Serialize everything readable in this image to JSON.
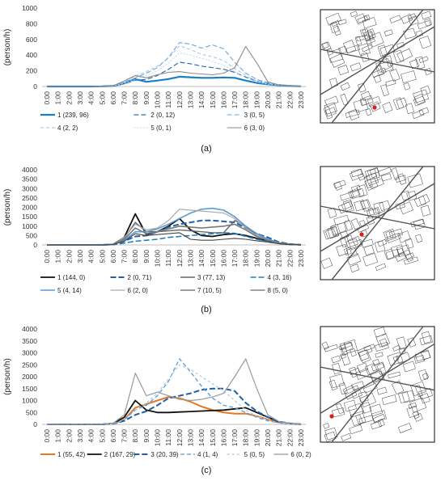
{
  "chart_data": [
    {
      "type": "line",
      "caption": "(a)",
      "ylabel": "(person/h)",
      "ylim": [
        0,
        1000
      ],
      "yticks": [
        0,
        200,
        400,
        600,
        800,
        1000
      ],
      "x": [
        "0:00",
        "1:00",
        "2:00",
        "3:00",
        "4:00",
        "5:00",
        "6:00",
        "7:00",
        "8:00",
        "9:00",
        "10:00",
        "11:00",
        "12:00",
        "13:00",
        "14:00",
        "15:00",
        "16:00",
        "17:00",
        "18:00",
        "19:00",
        "20:00",
        "21:00",
        "22:00",
        "23:00"
      ],
      "series": [
        {
          "name": "1 (239, 96)",
          "color": "#1a7fc4",
          "dash": "",
          "width": 2.2,
          "values": [
            0,
            0,
            0,
            0,
            0,
            2,
            8,
            40,
            95,
            60,
            75,
            95,
            125,
            118,
            110,
            110,
            115,
            110,
            75,
            45,
            28,
            15,
            8,
            2
          ]
        },
        {
          "name": "2 (0, 12)",
          "color": "#2f6db5",
          "dash": "6,3",
          "width": 1.2,
          "values": [
            0,
            0,
            0,
            0,
            0,
            2,
            6,
            35,
            80,
            90,
            140,
            220,
            310,
            290,
            260,
            240,
            220,
            180,
            120,
            70,
            40,
            22,
            10,
            3
          ]
        },
        {
          "name": "3 (0, 5)",
          "color": "#6aa7dc",
          "dash": "6,3",
          "width": 1.1,
          "values": [
            0,
            0,
            0,
            0,
            0,
            3,
            10,
            55,
            110,
            170,
            240,
            370,
            560,
            540,
            490,
            530,
            480,
            310,
            170,
            90,
            50,
            25,
            12,
            3
          ]
        },
        {
          "name": "4 (2, 2)",
          "color": "#9ec6e8",
          "dash": "4,3",
          "width": 1.0,
          "values": [
            0,
            0,
            0,
            0,
            0,
            3,
            10,
            60,
            130,
            190,
            260,
            360,
            520,
            470,
            410,
            380,
            330,
            230,
            140,
            70,
            40,
            20,
            10,
            3
          ]
        },
        {
          "name": "5 (0, 1)",
          "color": "#c0d8ef",
          "dash": "2,2",
          "width": 1.0,
          "values": [
            0,
            0,
            0,
            0,
            0,
            2,
            8,
            40,
            90,
            140,
            200,
            300,
            430,
            400,
            360,
            320,
            270,
            190,
            110,
            60,
            30,
            15,
            8,
            2
          ]
        },
        {
          "name": "6 (3, 0)",
          "color": "#8a8a8a",
          "dash": "",
          "width": 1.1,
          "values": [
            0,
            0,
            0,
            0,
            0,
            3,
            10,
            70,
            140,
            110,
            150,
            180,
            190,
            170,
            160,
            150,
            170,
            240,
            510,
            300,
            60,
            20,
            8,
            2
          ]
        }
      ]
    },
    {
      "type": "line",
      "caption": "(b)",
      "ylabel": "(person/h)",
      "ylim": [
        0,
        4000
      ],
      "yticks": [
        0,
        500,
        1000,
        1500,
        2000,
        2500,
        3000,
        3500,
        4000
      ],
      "x": [
        "0:00",
        "1:00",
        "2:00",
        "3:00",
        "4:00",
        "5:00",
        "6:00",
        "7:00",
        "8:00",
        "9:00",
        "10:00",
        "11:00",
        "12:00",
        "13:00",
        "14:00",
        "15:00",
        "16:00",
        "17:00",
        "18:00",
        "19:00",
        "20:00",
        "21:00",
        "22:00",
        "23:00"
      ],
      "series": [
        {
          "name": "1 (144, 0)",
          "color": "#111111",
          "dash": "",
          "width": 1.8,
          "values": [
            0,
            0,
            0,
            0,
            0,
            5,
            30,
            400,
            1650,
            550,
            700,
            1000,
            1400,
            800,
            500,
            450,
            550,
            600,
            500,
            350,
            200,
            80,
            30,
            5
          ]
        },
        {
          "name": "2 (0, 71)",
          "color": "#1f5fa8",
          "dash": "7,3",
          "width": 2.0,
          "values": [
            0,
            0,
            0,
            0,
            0,
            5,
            25,
            200,
            450,
            500,
            700,
            950,
            1100,
            1200,
            1300,
            1300,
            1250,
            1200,
            900,
            600,
            400,
            150,
            50,
            5
          ]
        },
        {
          "name": "3 (77, 13)",
          "color": "#666666",
          "dash": "",
          "width": 1.4,
          "values": [
            0,
            0,
            0,
            0,
            0,
            5,
            30,
            350,
            1200,
            700,
            700,
            750,
            800,
            750,
            700,
            650,
            650,
            1300,
            1000,
            500,
            250,
            100,
            40,
            5
          ]
        },
        {
          "name": "4 (3, 16)",
          "color": "#1a7fc4",
          "dash": "7,3",
          "width": 1.6,
          "values": [
            0,
            0,
            0,
            0,
            0,
            5,
            15,
            100,
            200,
            250,
            300,
            400,
            450,
            500,
            550,
            600,
            650,
            620,
            450,
            300,
            180,
            80,
            30,
            5
          ]
        },
        {
          "name": "5 (4, 14)",
          "color": "#5a9bd5",
          "dash": "",
          "width": 1.6,
          "values": [
            0,
            0,
            0,
            0,
            0,
            5,
            25,
            250,
            700,
            700,
            850,
            1100,
            1400,
            1700,
            1900,
            1950,
            1850,
            1500,
            1000,
            600,
            300,
            120,
            40,
            5
          ]
        },
        {
          "name": "6 (2, 0)",
          "color": "#aaaaaa",
          "dash": "",
          "width": 1.2,
          "values": [
            0,
            0,
            0,
            0,
            0,
            5,
            30,
            400,
            1100,
            800,
            900,
            1300,
            1900,
            1850,
            1800,
            1750,
            1700,
            1400,
            900,
            500,
            250,
            100,
            40,
            5
          ]
        },
        {
          "name": "7 (10, 5)",
          "color": "#7a7a7a",
          "dash": "",
          "width": 1.6,
          "values": [
            0,
            0,
            0,
            0,
            0,
            5,
            30,
            300,
            900,
            600,
            700,
            850,
            1000,
            950,
            900,
            950,
            1000,
            1100,
            800,
            450,
            250,
            100,
            40,
            5
          ]
        },
        {
          "name": "8 (5, 0)",
          "color": "#444444",
          "dash": "",
          "width": 1.1,
          "values": [
            0,
            0,
            0,
            0,
            0,
            5,
            20,
            200,
            600,
            500,
            550,
            600,
            650,
            300,
            250,
            250,
            300,
            350,
            300,
            220,
            150,
            60,
            20,
            5
          ]
        }
      ]
    },
    {
      "type": "line",
      "caption": "(c)",
      "ylabel": "(person/h)",
      "ylim": [
        0,
        4000
      ],
      "yticks": [
        0,
        500,
        1000,
        1500,
        2000,
        2500,
        3000,
        3500,
        4000
      ],
      "x": [
        "0:00",
        "1:00",
        "2:00",
        "3:00",
        "4:00",
        "5:00",
        "6:00",
        "7:00",
        "8:00",
        "9:00",
        "10:00",
        "11:00",
        "12:00",
        "13:00",
        "14:00",
        "15:00",
        "16:00",
        "17:00",
        "18:00",
        "19:00",
        "20:00",
        "21:00",
        "22:00",
        "23:00"
      ],
      "series": [
        {
          "name": "1 (55, 42)",
          "color": "#e87722",
          "dash": "",
          "width": 2.0,
          "values": [
            0,
            0,
            0,
            0,
            0,
            5,
            30,
            200,
            700,
            850,
            1000,
            1150,
            1100,
            950,
            750,
            600,
            500,
            450,
            450,
            350,
            200,
            80,
            30,
            5
          ]
        },
        {
          "name": "2 (167, 29)",
          "color": "#111111",
          "dash": "",
          "width": 1.8,
          "values": [
            0,
            0,
            0,
            0,
            0,
            5,
            40,
            300,
            1000,
            600,
            500,
            500,
            520,
            540,
            560,
            580,
            600,
            650,
            700,
            500,
            300,
            100,
            30,
            5
          ]
        },
        {
          "name": "3 (20, 39)",
          "color": "#1f5fa8",
          "dash": "7,3",
          "width": 2.0,
          "values": [
            0,
            0,
            0,
            0,
            0,
            5,
            25,
            150,
            400,
            550,
            800,
            1100,
            1200,
            1300,
            1450,
            1500,
            1500,
            1400,
            900,
            550,
            300,
            120,
            40,
            5
          ]
        },
        {
          "name": "4 (1, 4)",
          "color": "#5a9bd5",
          "dash": "5,3",
          "width": 1.3,
          "values": [
            0,
            0,
            0,
            0,
            0,
            5,
            25,
            200,
            600,
            800,
            1200,
            1800,
            2750,
            2200,
            1600,
            1100,
            800,
            700,
            500,
            300,
            150,
            60,
            20,
            5
          ]
        },
        {
          "name": "5 (0, 5)",
          "color": "#a6c8ea",
          "dash": "3,3",
          "width": 1.2,
          "values": [
            0,
            0,
            0,
            0,
            0,
            5,
            25,
            200,
            600,
            900,
            1300,
            1900,
            2500,
            2300,
            2000,
            1700,
            1400,
            1000,
            600,
            350,
            180,
            60,
            20,
            5
          ]
        },
        {
          "name": "6 (0, 2)",
          "color": "#999999",
          "dash": "",
          "width": 1.2,
          "values": [
            0,
            0,
            0,
            0,
            0,
            5,
            50,
            400,
            2150,
            1200,
            1350,
            1200,
            1050,
            1000,
            1050,
            1150,
            1300,
            2000,
            2750,
            1500,
            400,
            120,
            40,
            5
          ]
        }
      ]
    }
  ]
}
